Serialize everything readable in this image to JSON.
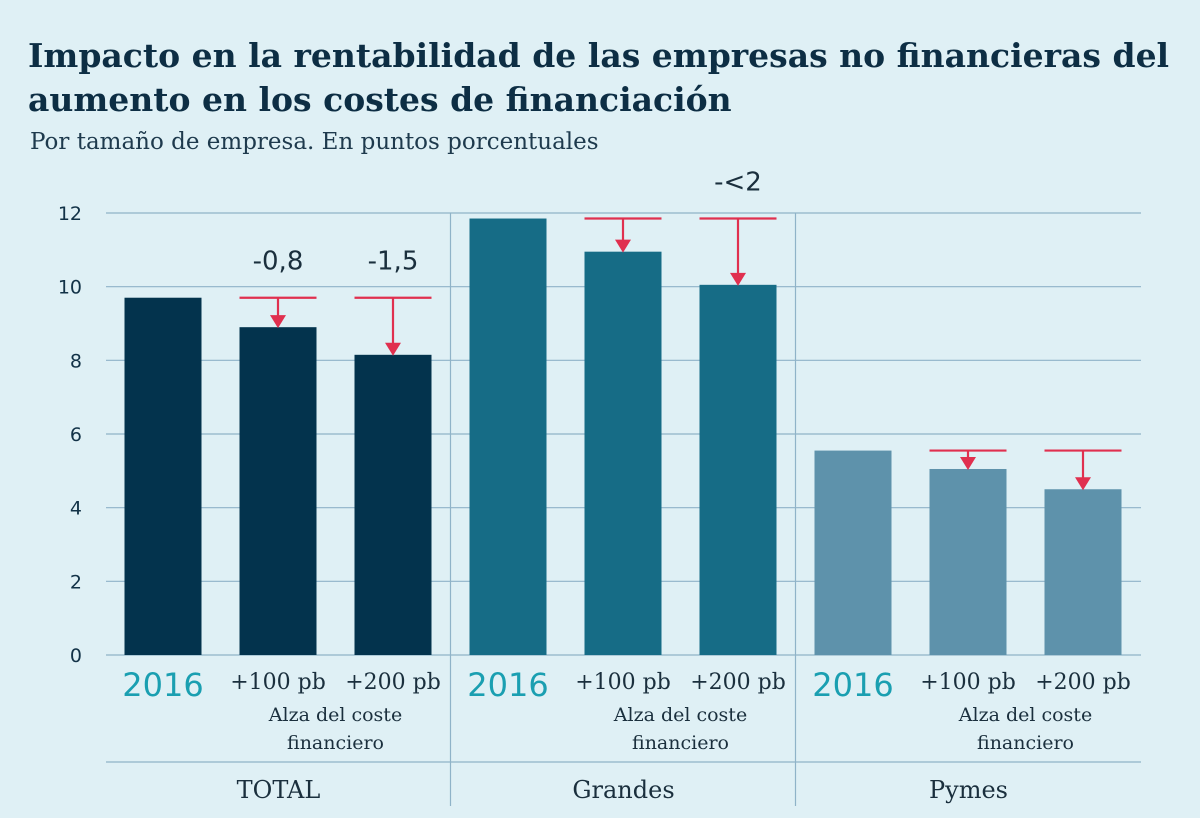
{
  "header": {
    "title": "Impacto en la rentabilidad de las empresas no financieras del aumento en los costes de financiación",
    "subtitle": "Por tamaño de empresa. En puntos porcentuales"
  },
  "chart_data": {
    "type": "bar",
    "title": "Impacto en la rentabilidad de las empresas no financieras del aumento en los costes de financiación",
    "subtitle": "Por tamaño de empresa. En puntos porcentuales",
    "ylim": [
      0,
      12
    ],
    "yticks": [
      0,
      2,
      4,
      6,
      8,
      10,
      12
    ],
    "grid": true,
    "legend": "none",
    "colors": {
      "grid": "#8fb3c8",
      "arrow": "#e0304f",
      "year": "#1a9fb1"
    },
    "groups": [
      {
        "name": "TOTAL",
        "color": "#03334d",
        "categories": [
          "2016",
          "+100 pb",
          "+200 pb"
        ],
        "values": [
          9.7,
          8.9,
          8.15
        ],
        "deltas": [
          "",
          "-0,8",
          "-1,5"
        ],
        "note": [
          "Alza del coste",
          "financiero"
        ]
      },
      {
        "name": "Grandes",
        "color": "#166c86",
        "categories": [
          "2016",
          "+100 pb",
          "+200 pb"
        ],
        "values": [
          11.85,
          10.95,
          10.05
        ],
        "deltas": [
          "",
          "",
          "-<2"
        ],
        "note": [
          "Alza del coste",
          "financiero"
        ]
      },
      {
        "name": "Pymes",
        "color": "#5e92ab",
        "categories": [
          "2016",
          "+100 pb",
          "+200 pb"
        ],
        "values": [
          5.55,
          5.05,
          4.5
        ],
        "deltas": [
          "",
          "",
          ""
        ],
        "note": [
          "Alza del coste",
          "financiero"
        ]
      }
    ]
  }
}
